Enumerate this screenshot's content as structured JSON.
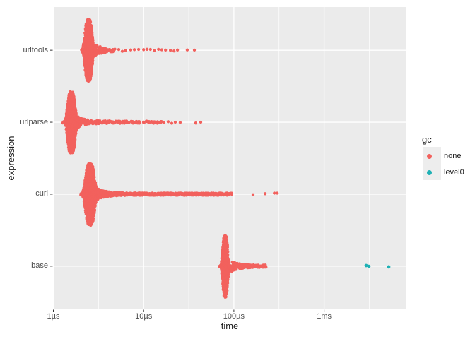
{
  "colors": {
    "red": "#F2615D",
    "teal": "#1FB1B5",
    "panel_bg": "#EBEBEB",
    "grid": "#FFFFFF",
    "tick": "#333333",
    "tick_label": "#4D4D4D",
    "axis_title": "#1A1A1A",
    "legend_key_bg": "#EDEDED"
  },
  "legend": {
    "title": "gc",
    "position": "right",
    "items": [
      {
        "label": "none",
        "color": "#F2615D",
        "marker": "circle-icon"
      },
      {
        "label": "level0",
        "color": "#1FB1B5",
        "marker": "circle-icon"
      }
    ]
  },
  "chart_data": {
    "type": "scatter",
    "variant": "beeswarm",
    "title": "",
    "xlabel": "time",
    "ylabel": "expression",
    "x_scale": "log10",
    "x_unit": "µs",
    "x_range_us": [
      1,
      8000
    ],
    "grid": "major-and-minor-x, major-y, white on gray panel",
    "x_ticks": [
      {
        "label": "1µs",
        "us": 1
      },
      {
        "label": "10µs",
        "us": 10
      },
      {
        "label": "100µs",
        "us": 100
      },
      {
        "label": "1ms",
        "us": 1000
      }
    ],
    "categories": [
      "urltools",
      "urlparse",
      "curl",
      "base"
    ],
    "series": [
      {
        "name": "none",
        "color": "#F2615D",
        "rows": [
          {
            "expression": "urltools",
            "median_us": 2.45,
            "spread_log10": 0.028,
            "n_core": 900,
            "tail_us": [
              2.9,
              4.7
            ],
            "n_tail": 80,
            "tail_decay": 1.2,
            "outliers_us": [
              4.8,
              5.3,
              5.8,
              6.3,
              7.2,
              7.9,
              8.8,
              10.0,
              10.9,
              11.9,
              13.1,
              14.6,
              15.9,
              17.5,
              19.8,
              21.7,
              23.7,
              30.4,
              36.5
            ]
          },
          {
            "expression": "urlparse",
            "median_us": 1.58,
            "spread_log10": 0.03,
            "n_core": 1000,
            "tail_us": [
              1.85,
              16.0
            ],
            "n_tail": 230,
            "tail_decay": 2.0,
            "outliers_us": [
              16.8,
              18.7,
              20.5,
              22.4,
              25.4,
              37.8,
              42.9
            ]
          },
          {
            "expression": "curl",
            "median_us": 2.55,
            "spread_log10": 0.035,
            "n_core": 1200,
            "tail_us": [
              3.1,
              95.0
            ],
            "n_tail": 560,
            "tail_decay": 1.35,
            "outliers_us": [
              163,
              222,
              281,
              302
            ]
          },
          {
            "expression": "base",
            "median_us": 80.0,
            "spread_log10": 0.02,
            "n_core": 750,
            "tail_us": [
              92.0,
              228.0
            ],
            "n_tail": 170,
            "tail_decay": 1.3,
            "outliers_us": []
          }
        ]
      },
      {
        "name": "level0",
        "color": "#1FB1B5",
        "rows": [
          {
            "expression": "base",
            "points_us": [
              2920,
              3130,
              5200
            ]
          }
        ]
      }
    ]
  }
}
